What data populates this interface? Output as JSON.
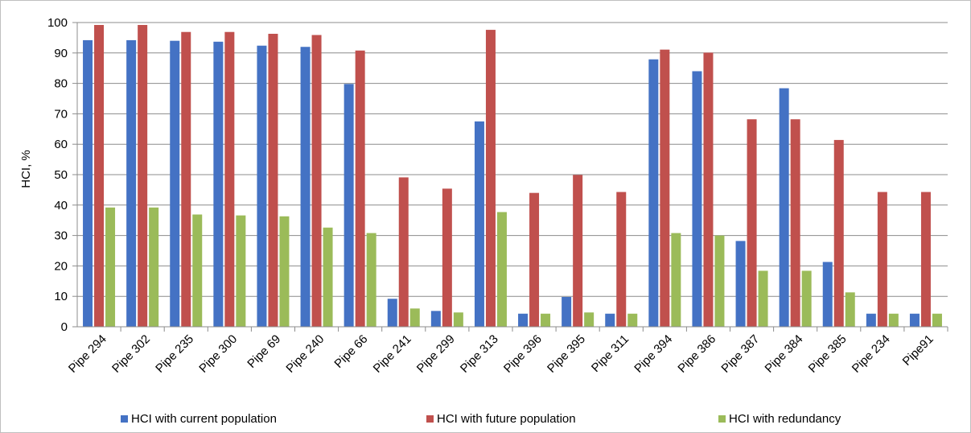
{
  "chart_data": {
    "type": "bar",
    "ylabel": "HCI, %",
    "xlabel": "",
    "ylim": [
      0,
      100
    ],
    "y_ticks": [
      "0",
      "10",
      "20",
      "30",
      "40",
      "50",
      "60",
      "70",
      "80",
      "90",
      "100"
    ],
    "grid": true,
    "legend_position": "bottom",
    "categories": [
      "Pipe 294",
      "Pipe 302",
      "Pipe 235",
      "Pipe 300",
      "Pipe 69",
      "Pipe 240",
      "Pipe 66",
      "Pipe 241",
      "Pipe 299",
      "Pipe 313",
      "Pipe 396",
      "Pipe 395",
      "Pipe 311",
      "Pipe 394",
      "Pipe 386",
      "Pipe 387",
      "Pipe 384",
      "Pipe 385",
      "Pipe 234",
      "Pipe91"
    ],
    "series": [
      {
        "name": "HCI with current population",
        "color": "#4472c4",
        "values": [
          94.2,
          94.2,
          94.0,
          93.7,
          92.4,
          92.0,
          79.8,
          9.2,
          5.2,
          67.5,
          4.3,
          9.8,
          4.3,
          87.9,
          84.0,
          28.2,
          78.4,
          21.3,
          4.3,
          4.3
        ]
      },
      {
        "name": "HCI with future population",
        "color": "#c0504d",
        "values": [
          99.2,
          99.2,
          96.9,
          96.9,
          96.3,
          95.9,
          90.8,
          49.1,
          45.4,
          97.6,
          44.0,
          49.9,
          44.3,
          91.1,
          90.1,
          68.2,
          68.2,
          61.4,
          44.3,
          44.3
        ]
      },
      {
        "name": "HCI with redundancy",
        "color": "#9bbb59",
        "values": [
          39.2,
          39.2,
          36.9,
          36.6,
          36.3,
          32.6,
          30.8,
          6.0,
          4.7,
          37.7,
          4.3,
          4.7,
          4.3,
          30.8,
          30.0,
          18.4,
          18.4,
          11.3,
          4.3,
          4.3
        ]
      }
    ]
  }
}
